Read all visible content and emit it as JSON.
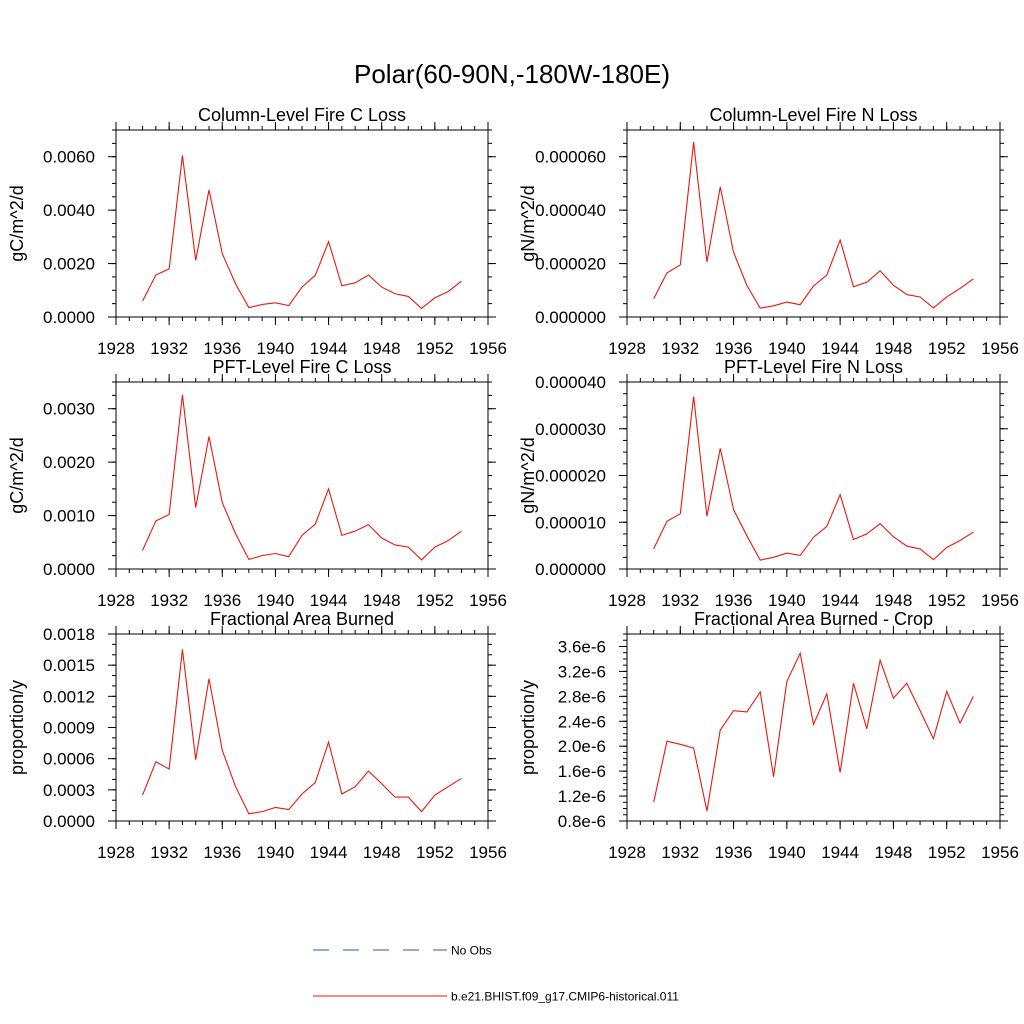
{
  "figure": {
    "title": "Polar(60-90N,-180W-180E)"
  },
  "legend": [
    {
      "label": "No Obs",
      "color": "#3a4fb0",
      "dash": true
    },
    {
      "label": "b.e21.BHIST.f09_g17.CMIP6-historical.011",
      "color": "#e8190f",
      "dash": false
    }
  ],
  "chart_data": [
    {
      "type": "line",
      "title": "Column-Level Fire C Loss",
      "ylabel": "gC/m^2/d",
      "xlim": [
        1928,
        1956
      ],
      "ylim": [
        0,
        0.007
      ],
      "xticks": [
        1928,
        1932,
        1936,
        1940,
        1944,
        1948,
        1952,
        1956
      ],
      "yticks": [
        0,
        0.002,
        0.004,
        0.006
      ],
      "ytick_labels": [
        "0.0000",
        "0.0020",
        "0.0040",
        "0.0060"
      ],
      "yminor": 0.0005,
      "grid": false,
      "series": [
        {
          "name": "b.e21.BHIST.f09_g17.CMIP6-historical.011",
          "color": "#e8190f",
          "x": [
            1930,
            1931,
            1932,
            1933,
            1934,
            1935,
            1936,
            1937,
            1938,
            1939,
            1940,
            1941,
            1942,
            1943,
            1944,
            1945,
            1946,
            1947,
            1948,
            1949,
            1950,
            1951,
            1952,
            1953,
            1954
          ],
          "y": [
            0.0006,
            0.00157,
            0.0018,
            0.00605,
            0.00212,
            0.00476,
            0.00237,
            0.00124,
            0.00035,
            0.00047,
            0.00053,
            0.00043,
            0.00112,
            0.00156,
            0.00282,
            0.00117,
            0.00128,
            0.00157,
            0.00112,
            0.00087,
            0.00077,
            0.00032,
            0.00072,
            0.00095,
            0.00134
          ]
        }
      ]
    },
    {
      "type": "line",
      "title": "Column-Level Fire N Loss",
      "ylabel": "gN/m^2/d",
      "xlim": [
        1928,
        1956
      ],
      "ylim": [
        0,
        7e-05
      ],
      "xticks": [
        1928,
        1932,
        1936,
        1940,
        1944,
        1948,
        1952,
        1956
      ],
      "yticks": [
        0,
        2e-05,
        4e-05,
        6e-05
      ],
      "ytick_labels": [
        "0.000000",
        "0.000020",
        "0.000040",
        "0.000060"
      ],
      "yminor": 5e-06,
      "grid": false,
      "series": [
        {
          "name": "b.e21.BHIST.f09_g17.CMIP6-historical.011",
          "color": "#e8190f",
          "x": [
            1930,
            1931,
            1932,
            1933,
            1934,
            1935,
            1936,
            1937,
            1938,
            1939,
            1940,
            1941,
            1942,
            1943,
            1944,
            1945,
            1946,
            1947,
            1948,
            1949,
            1950,
            1951,
            1952,
            1953,
            1954
          ],
          "y": [
            6.8e-06,
            1.65e-05,
            1.95e-05,
            6.55e-05,
            2.06e-05,
            4.87e-05,
            2.42e-05,
            1.18e-05,
            3.3e-06,
            4.2e-06,
            5.6e-06,
            4.6e-06,
            1.16e-05,
            1.57e-05,
            2.88e-05,
            1.13e-05,
            1.3e-05,
            1.73e-05,
            1.19e-05,
            8.4e-06,
            7.5e-06,
            3.4e-06,
            7.5e-06,
            1.07e-05,
            1.43e-05
          ]
        }
      ]
    },
    {
      "type": "line",
      "title": "PFT-Level Fire C Loss",
      "ylabel": "gC/m^2/d",
      "xlim": [
        1928,
        1956
      ],
      "ylim": [
        0,
        0.0035
      ],
      "xticks": [
        1928,
        1932,
        1936,
        1940,
        1944,
        1948,
        1952,
        1956
      ],
      "yticks": [
        0,
        0.001,
        0.002,
        0.003
      ],
      "ytick_labels": [
        "0.0000",
        "0.0010",
        "0.0020",
        "0.0030"
      ],
      "yminor": 0.00025,
      "grid": false,
      "series": [
        {
          "name": "b.e21.BHIST.f09_g17.CMIP6-historical.011",
          "color": "#e8190f",
          "x": [
            1930,
            1931,
            1932,
            1933,
            1934,
            1935,
            1936,
            1937,
            1938,
            1939,
            1940,
            1941,
            1942,
            1943,
            1944,
            1945,
            1946,
            1947,
            1948,
            1949,
            1950,
            1951,
            1952,
            1953,
            1954
          ],
          "y": [
            0.00035,
            0.0009,
            0.00102,
            0.00326,
            0.00115,
            0.00248,
            0.00124,
            0.00066,
            0.00018,
            0.00025,
            0.00029,
            0.00023,
            0.00063,
            0.00084,
            0.0015,
            0.00063,
            0.00071,
            0.00083,
            0.00058,
            0.00045,
            0.00041,
            0.00017,
            0.00041,
            0.00053,
            0.00071
          ]
        }
      ]
    },
    {
      "type": "line",
      "title": "PFT-Level Fire N Loss",
      "ylabel": "gN/m^2/d",
      "xlim": [
        1928,
        1956
      ],
      "ylim": [
        0,
        4e-05
      ],
      "xticks": [
        1928,
        1932,
        1936,
        1940,
        1944,
        1948,
        1952,
        1956
      ],
      "yticks": [
        0,
        1e-05,
        2e-05,
        3e-05,
        4e-05
      ],
      "ytick_labels": [
        "0.000000",
        "0.000010",
        "0.000020",
        "0.000030",
        "0.000040"
      ],
      "yminor": 2.5e-06,
      "grid": false,
      "series": [
        {
          "name": "b.e21.BHIST.f09_g17.CMIP6-historical.011",
          "color": "#e8190f",
          "x": [
            1930,
            1931,
            1932,
            1933,
            1934,
            1935,
            1936,
            1937,
            1938,
            1939,
            1940,
            1941,
            1942,
            1943,
            1944,
            1945,
            1946,
            1947,
            1948,
            1949,
            1950,
            1951,
            1952,
            1953,
            1954
          ],
          "y": [
            4.3e-06,
            1.02e-05,
            1.18e-05,
            3.69e-05,
            1.13e-05,
            2.58e-05,
            1.27e-05,
            7.1e-06,
            1.9e-06,
            2.5e-06,
            3.4e-06,
            2.9e-06,
            6.8e-06,
            9.1e-06,
            1.59e-05,
            6.3e-06,
            7.5e-06,
            9.7e-06,
            6.9e-06,
            4.9e-06,
            4.3e-06,
            2e-06,
            4.6e-06,
            6.1e-06,
            7.9e-06
          ]
        }
      ]
    },
    {
      "type": "line",
      "title": "Fractional Area Burned",
      "ylabel": "proportion/y",
      "xlim": [
        1928,
        1956
      ],
      "ylim": [
        0,
        0.0018
      ],
      "xticks": [
        1928,
        1932,
        1936,
        1940,
        1944,
        1948,
        1952,
        1956
      ],
      "yticks": [
        0,
        0.0003,
        0.0006,
        0.0009,
        0.0012,
        0.0015,
        0.0018
      ],
      "ytick_labels": [
        "0.0000",
        "0.0003",
        "0.0006",
        "0.0009",
        "0.0012",
        "0.0015",
        "0.0018"
      ],
      "yminor": 0.0001,
      "grid": false,
      "series": [
        {
          "name": "b.e21.BHIST.f09_g17.CMIP6-historical.011",
          "color": "#e8190f",
          "x": [
            1930,
            1931,
            1932,
            1933,
            1934,
            1935,
            1936,
            1937,
            1938,
            1939,
            1940,
            1941,
            1942,
            1943,
            1944,
            1945,
            1946,
            1947,
            1948,
            1949,
            1950,
            1951,
            1952,
            1953,
            1954
          ],
          "y": [
            0.00025,
            0.00057,
            0.0005,
            0.00165,
            0.00059,
            0.00137,
            0.00068,
            0.00033,
            7e-05,
            9e-05,
            0.00013,
            0.00011,
            0.00026,
            0.00037,
            0.00076,
            0.00026,
            0.00033,
            0.00048,
            0.00036,
            0.00023,
            0.00023,
            9e-05,
            0.00025,
            0.00033,
            0.00041
          ]
        }
      ]
    },
    {
      "type": "line",
      "title": "Fractional Area Burned - Crop",
      "ylabel": "proportion/y",
      "xlim": [
        1928,
        1956
      ],
      "ylim": [
        8e-07,
        3.8e-06
      ],
      "xticks": [
        1928,
        1932,
        1936,
        1940,
        1944,
        1948,
        1952,
        1956
      ],
      "yticks": [
        8e-07,
        1.2e-06,
        1.6e-06,
        2e-06,
        2.4e-06,
        2.8e-06,
        3.2e-06,
        3.6e-06
      ],
      "ytick_labels": [
        "0.8e-6",
        "1.2e-6",
        "1.6e-6",
        "2.0e-6",
        "2.4e-6",
        "2.8e-6",
        "3.2e-6",
        "3.6e-6"
      ],
      "yminor": 1e-07,
      "grid": false,
      "series": [
        {
          "name": "b.e21.BHIST.f09_g17.CMIP6-historical.011",
          "color": "#e8190f",
          "x": [
            1930,
            1931,
            1932,
            1933,
            1934,
            1935,
            1936,
            1937,
            1938,
            1939,
            1940,
            1941,
            1942,
            1943,
            1944,
            1945,
            1946,
            1947,
            1948,
            1949,
            1950,
            1951,
            1952,
            1953,
            1954
          ],
          "y": [
            1.1e-06,
            2.08e-06,
            2.03e-06,
            1.97e-06,
            9.6e-07,
            2.26e-06,
            2.57e-06,
            2.55e-06,
            2.87e-06,
            1.51e-06,
            3.04e-06,
            3.49e-06,
            2.35e-06,
            2.84e-06,
            1.58e-06,
            3.01e-06,
            2.28e-06,
            3.38e-06,
            2.77e-06,
            3.01e-06,
            2.57e-06,
            2.12e-06,
            2.88e-06,
            2.37e-06,
            2.8e-06
          ]
        }
      ]
    }
  ]
}
